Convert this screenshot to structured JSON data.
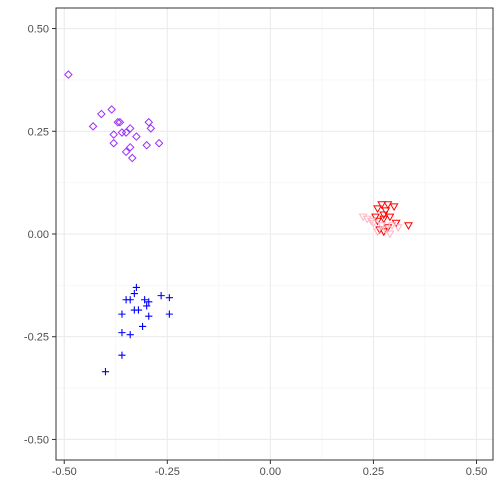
{
  "chart_data": {
    "type": "scatter",
    "xlim": [
      -0.52,
      0.54
    ],
    "ylim": [
      -0.55,
      0.55
    ],
    "x_ticks": [
      -0.5,
      -0.25,
      0.0,
      0.25,
      0.5
    ],
    "y_ticks": [
      -0.5,
      -0.25,
      0.0,
      0.25,
      0.5
    ],
    "x_tick_labels": [
      "-0.50",
      "-0.25",
      "0.00",
      "0.25",
      "0.50"
    ],
    "y_tick_labels": [
      "-0.50",
      "-0.25",
      "0.00",
      "0.25",
      "0.50"
    ],
    "grid": true,
    "legend": "none",
    "series": [
      {
        "marker": "diamond",
        "color": "#9b30ff",
        "points": [
          [
            -0.49,
            0.388
          ],
          [
            -0.41,
            0.292
          ],
          [
            -0.385,
            0.303
          ],
          [
            -0.37,
            0.272
          ],
          [
            -0.365,
            0.272
          ],
          [
            -0.43,
            0.262
          ],
          [
            -0.295,
            0.272
          ],
          [
            -0.29,
            0.257
          ],
          [
            -0.34,
            0.257
          ],
          [
            -0.35,
            0.247
          ],
          [
            -0.36,
            0.247
          ],
          [
            -0.38,
            0.242
          ],
          [
            -0.325,
            0.237
          ],
          [
            -0.34,
            0.211
          ],
          [
            -0.3,
            0.216
          ],
          [
            -0.27,
            0.221
          ],
          [
            -0.38,
            0.221
          ],
          [
            -0.35,
            0.2
          ],
          [
            -0.335,
            0.185
          ]
        ]
      },
      {
        "marker": "triangle-down",
        "color": "#ff0000",
        "points": [
          [
            0.27,
            0.071
          ],
          [
            0.285,
            0.071
          ],
          [
            0.3,
            0.066
          ],
          [
            0.26,
            0.061
          ],
          [
            0.28,
            0.056
          ],
          [
            0.275,
            0.046
          ],
          [
            0.255,
            0.041
          ],
          [
            0.29,
            0.041
          ],
          [
            0.275,
            0.036
          ],
          [
            0.26,
            0.031
          ],
          [
            0.305,
            0.026
          ],
          [
            0.335,
            0.02
          ],
          [
            0.285,
            0.015
          ],
          [
            0.265,
            0.01
          ],
          [
            0.275,
            0.005
          ]
        ]
      },
      {
        "marker": "triangle-down",
        "color": "#ffb6c1",
        "points": [
          [
            0.225,
            0.041
          ],
          [
            0.235,
            0.036
          ],
          [
            0.245,
            0.031
          ],
          [
            0.25,
            0.026
          ],
          [
            0.27,
            0.02
          ],
          [
            0.295,
            0.02
          ],
          [
            0.31,
            0.015
          ],
          [
            0.28,
            0.01
          ],
          [
            0.26,
            0.005
          ],
          [
            0.29,
            0.0
          ]
        ]
      },
      {
        "marker": "plus",
        "color": "#0000ff",
        "points": [
          [
            -0.325,
            -0.13
          ],
          [
            -0.33,
            -0.145
          ],
          [
            -0.265,
            -0.15
          ],
          [
            -0.245,
            -0.155
          ],
          [
            -0.35,
            -0.16
          ],
          [
            -0.34,
            -0.16
          ],
          [
            -0.305,
            -0.16
          ],
          [
            -0.295,
            -0.165
          ],
          [
            -0.3,
            -0.175
          ],
          [
            -0.32,
            -0.185
          ],
          [
            -0.33,
            -0.185
          ],
          [
            -0.36,
            -0.195
          ],
          [
            -0.295,
            -0.2
          ],
          [
            -0.245,
            -0.195
          ],
          [
            -0.31,
            -0.225
          ],
          [
            -0.36,
            -0.24
          ],
          [
            -0.34,
            -0.245
          ],
          [
            -0.36,
            -0.295
          ],
          [
            -0.4,
            -0.335
          ]
        ]
      }
    ]
  }
}
